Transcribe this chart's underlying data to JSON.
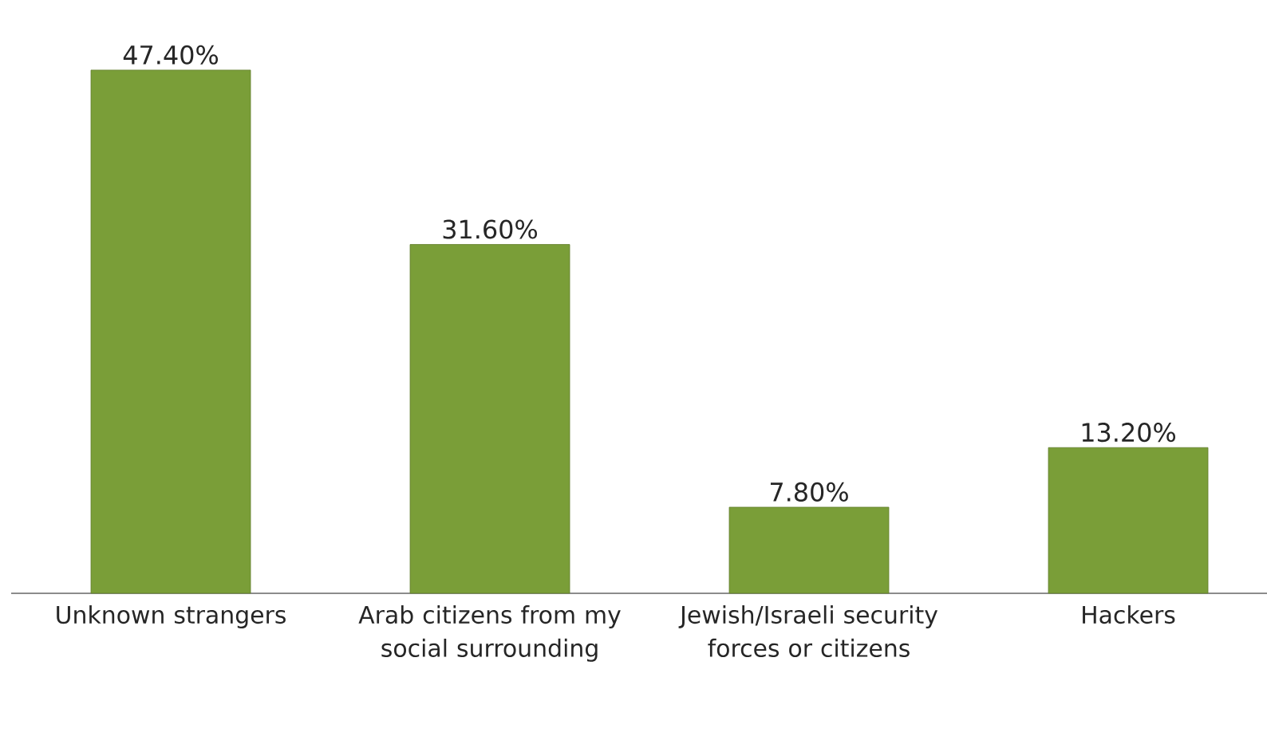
{
  "chart_data": {
    "type": "bar",
    "categories": [
      "Unknown strangers",
      "Arab citizens from my social surrounding",
      "Jewish/Israeli security forces or citizens",
      "Hackers"
    ],
    "values": [
      47.4,
      31.6,
      7.8,
      13.2
    ],
    "value_labels": [
      "47.40%",
      "31.60%",
      "7.80%",
      "13.20%"
    ],
    "color": "#7a9e38"
  }
}
